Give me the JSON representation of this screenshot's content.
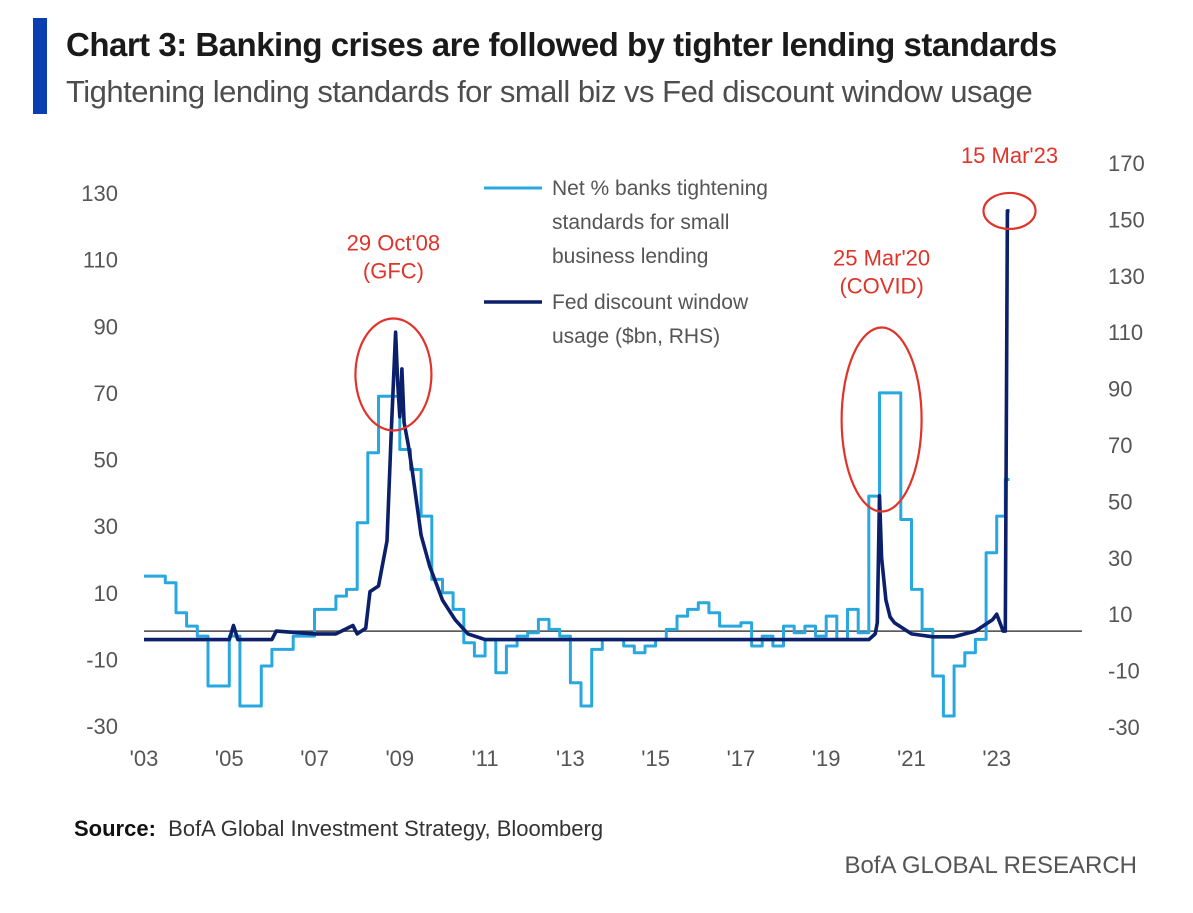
{
  "header": {
    "title": "Chart 3: Banking crises are followed by tighter lending standards",
    "subtitle": "Tightening lending standards for small biz vs Fed discount window usage"
  },
  "footer": {
    "source_label": "Source:",
    "source_text": "BofA Global Investment Strategy, Bloomberg",
    "brand": "BofA GLOBAL RESEARCH"
  },
  "colors": {
    "accent": "#0a3fb0",
    "tightening": "#29a8e0",
    "fed": "#0b1f6b",
    "annotation": "#e0332a",
    "zero_line": "#444444"
  },
  "chart_data": {
    "type": "line",
    "title": "Chart 3: Banking crises are followed by tighter lending standards",
    "subtitle": "Tightening lending standards for small biz vs Fed discount window usage",
    "x_tick_labels": [
      "'03",
      "'05",
      "'07",
      "'09",
      "'11",
      "'13",
      "'15",
      "'17",
      "'19",
      "'21",
      "'23"
    ],
    "x_range": [
      2003.0,
      2025.0
    ],
    "left_axis": {
      "ticks": [
        -30,
        -10,
        10,
        30,
        50,
        70,
        90,
        110,
        130
      ],
      "range": [
        -30,
        130
      ]
    },
    "right_axis": {
      "ticks": [
        -30,
        -10,
        10,
        30,
        50,
        70,
        90,
        110,
        130,
        150,
        170
      ],
      "range": [
        -30,
        170
      ]
    },
    "zero_line_right_value": 4,
    "grid": false,
    "legend_position": "top-center",
    "series": [
      {
        "name": "Net % banks tightening standards for small business lending",
        "axis": "left",
        "step": true,
        "x": [
          2003.0,
          2003.5,
          2003.75,
          2004.0,
          2004.25,
          2004.5,
          2004.75,
          2005.0,
          2005.25,
          2005.5,
          2005.75,
          2006.0,
          2006.25,
          2006.5,
          2006.75,
          2007.0,
          2007.25,
          2007.5,
          2007.75,
          2008.0,
          2008.25,
          2008.5,
          2008.75,
          2009.0,
          2009.25,
          2009.5,
          2009.75,
          2010.0,
          2010.25,
          2010.5,
          2010.75,
          2011.0,
          2011.25,
          2011.5,
          2011.75,
          2012.0,
          2012.25,
          2012.5,
          2012.75,
          2013.0,
          2013.25,
          2013.5,
          2013.75,
          2014.0,
          2014.25,
          2014.5,
          2014.75,
          2015.0,
          2015.25,
          2015.5,
          2015.75,
          2016.0,
          2016.25,
          2016.5,
          2016.75,
          2017.0,
          2017.25,
          2017.5,
          2017.75,
          2018.0,
          2018.25,
          2018.5,
          2018.75,
          2019.0,
          2019.25,
          2019.5,
          2019.75,
          2020.0,
          2020.25,
          2020.5,
          2020.75,
          2021.0,
          2021.25,
          2021.5,
          2021.75,
          2022.0,
          2022.25,
          2022.5,
          2022.75,
          2023.0,
          2023.2
        ],
        "values": [
          15,
          13,
          4,
          0,
          -3,
          -18,
          -18,
          -3,
          -24,
          -24,
          -12,
          -7,
          -7,
          -3,
          -3,
          5,
          5,
          9,
          11,
          31,
          52,
          69,
          69,
          53,
          47,
          33,
          14,
          10,
          5,
          -5,
          -9,
          -4,
          -14,
          -6,
          -3,
          -2,
          2,
          -1,
          -3,
          -17,
          -24,
          -7,
          -4,
          -4,
          -6,
          -8,
          -6,
          -4,
          -1,
          3,
          5,
          7,
          4,
          0,
          0,
          1,
          -6,
          -3,
          -6,
          0,
          -2,
          0,
          -3,
          3,
          -4,
          5,
          -2,
          39,
          70,
          70,
          32,
          11,
          -1,
          -15,
          -27,
          -12,
          -8,
          -4,
          22,
          33,
          44
        ],
        "color": "#29a8e0"
      },
      {
        "name": "Fed discount window usage ($bn, RHS)",
        "axis": "right",
        "step": false,
        "x": [
          2003.0,
          2004.0,
          2005.0,
          2005.1,
          2005.2,
          2006.0,
          2006.1,
          2007.0,
          2007.5,
          2007.9,
          2008.0,
          2008.2,
          2008.3,
          2008.5,
          2008.7,
          2008.8,
          2008.9,
          2008.95,
          2009.0,
          2009.05,
          2009.1,
          2009.2,
          2009.3,
          2009.5,
          2009.7,
          2010.0,
          2010.3,
          2010.6,
          2011.0,
          2012.0,
          2014.0,
          2016.0,
          2018.0,
          2019.5,
          2020.0,
          2020.15,
          2020.2,
          2020.25,
          2020.3,
          2020.4,
          2020.5,
          2020.6,
          2020.8,
          2021.0,
          2021.5,
          2022.0,
          2022.5,
          2022.9,
          2023.0,
          2023.1,
          2023.15,
          2023.2,
          2023.25,
          2023.3
        ],
        "values": [
          1,
          1,
          1,
          6,
          1,
          1,
          4,
          3,
          3,
          6,
          3,
          5,
          18,
          20,
          36,
          75,
          110,
          92,
          80,
          97,
          78,
          70,
          60,
          38,
          27,
          15,
          8,
          3,
          1,
          1,
          1,
          1,
          1,
          1,
          1,
          3,
          7,
          52,
          30,
          15,
          9,
          7,
          5,
          3,
          2,
          2,
          4,
          8,
          10,
          6,
          4,
          4,
          153,
          153
        ],
        "color": "#0b1f6b"
      }
    ],
    "annotations": [
      {
        "lines": [
          "29 Oct'08",
          "(GFC)"
        ],
        "x": 2008.85,
        "y": 95
      },
      {
        "lines": [
          "25 Mar'20",
          "(COVID)"
        ],
        "x": 2020.3,
        "y": 62
      },
      {
        "lines": [
          "15 Mar'23"
        ],
        "x": 2023.3,
        "y": 153
      }
    ]
  }
}
